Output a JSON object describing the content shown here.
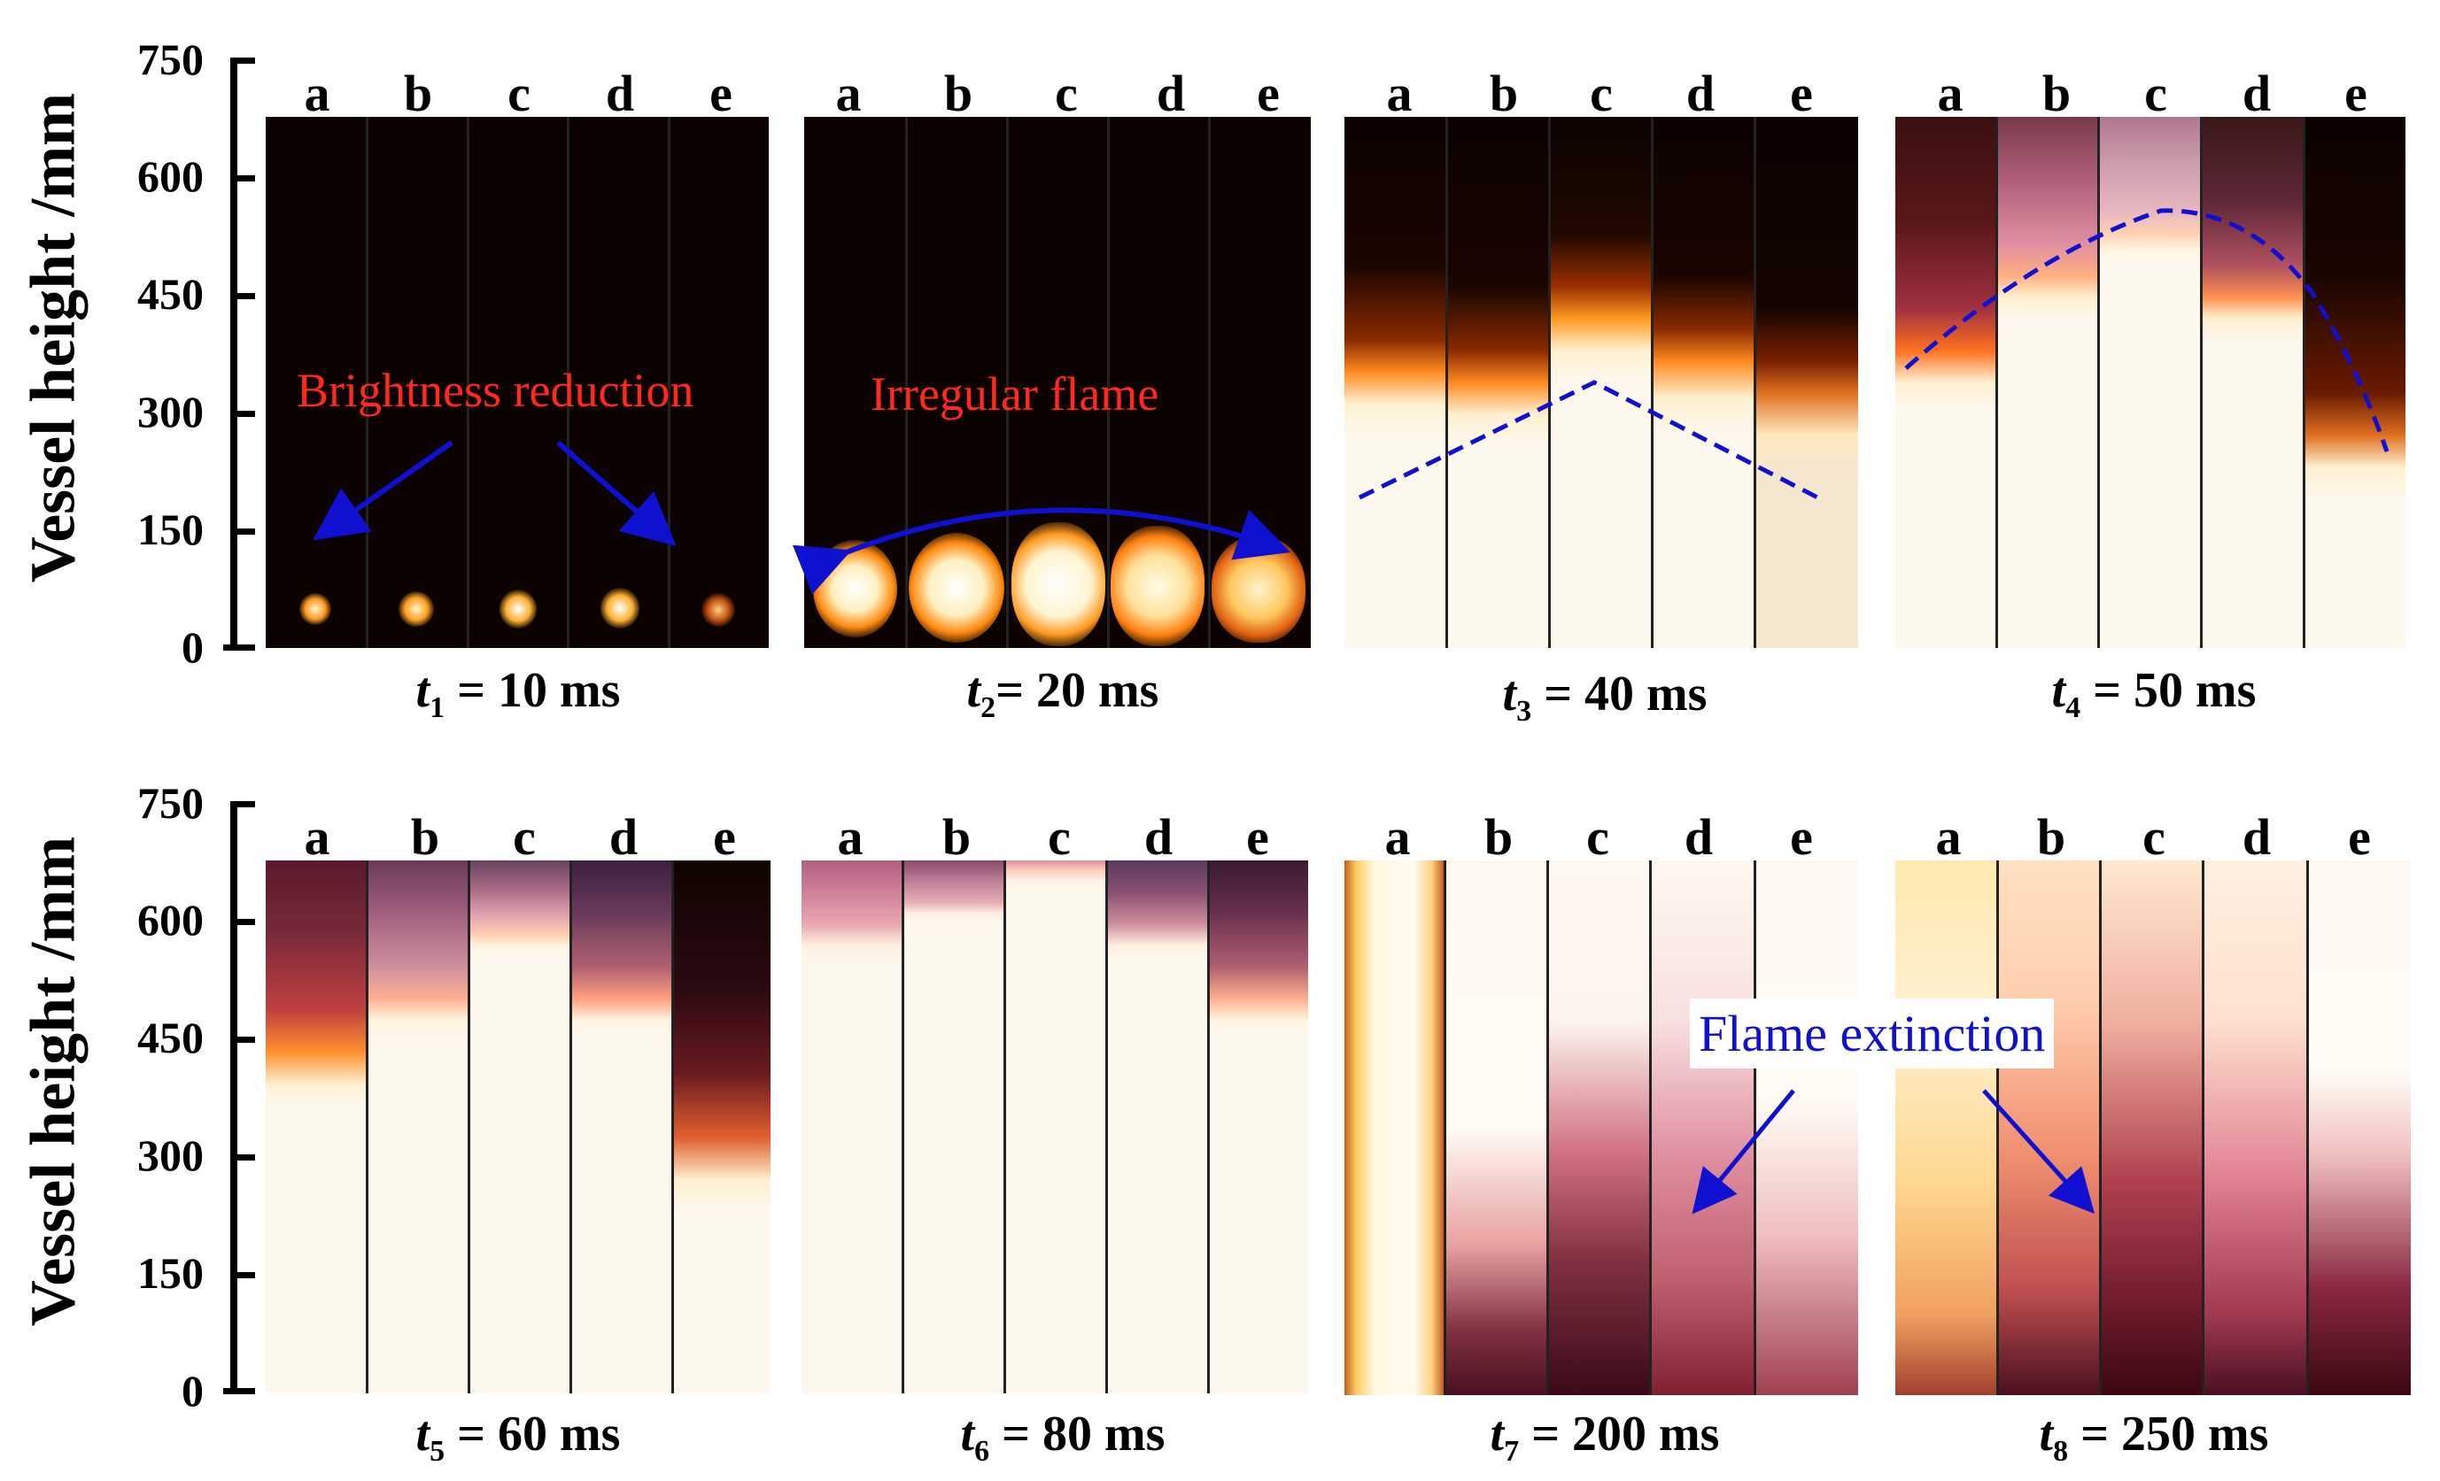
{
  "figure": {
    "y_axis_label": "Vessel height /mm",
    "y_ticks": [
      "750",
      "600",
      "450",
      "300",
      "150",
      "0"
    ],
    "column_letters": [
      "a",
      "b",
      "c",
      "d",
      "e"
    ],
    "rows": [
      {
        "panels": [
          {
            "t_symbol": "t",
            "t_sub": "1",
            "t_value": " = 10 ms"
          },
          {
            "t_symbol": "t",
            "t_sub": "2",
            "t_value": "= 20 ms"
          },
          {
            "t_symbol": "t",
            "t_sub": "3",
            "t_value": " = 40 ms"
          },
          {
            "t_symbol": "t",
            "t_sub": "4",
            "t_value": " = 50 ms"
          }
        ]
      },
      {
        "panels": [
          {
            "t_symbol": "t",
            "t_sub": "5",
            "t_value": " = 60 ms"
          },
          {
            "t_symbol": "t",
            "t_sub": "6",
            "t_value": " = 80 ms"
          },
          {
            "t_symbol": "t",
            "t_sub": "7",
            "t_value": " = 200 ms"
          },
          {
            "t_symbol": "t",
            "t_sub": "8",
            "t_value": " = 250 ms"
          }
        ]
      }
    ],
    "annotations": {
      "brightness": "Brightness reduction",
      "irregular": "Irregular flame",
      "extinction": "Flame extinction"
    },
    "colors": {
      "annot_red": "#ff2a1a",
      "annot_blue": "#1010d0",
      "flame_core": "#fdf8ee",
      "background": "#0c0200"
    }
  }
}
